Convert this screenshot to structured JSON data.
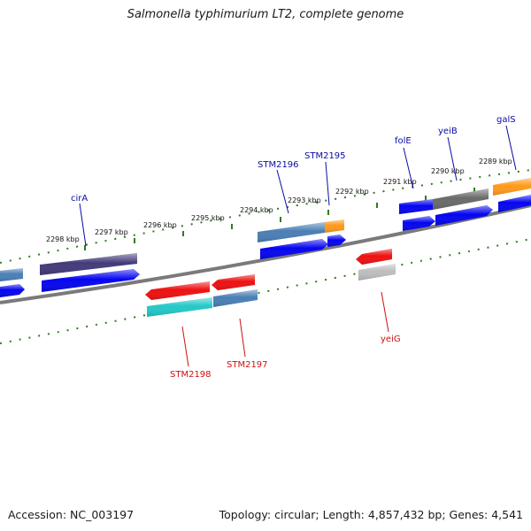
{
  "title": "Salmonella typhimurium LT2, complete genome",
  "accession_text": "Accession: NC_003197",
  "topology_text": "Topology: circular; Length: 4,857,432 bp; Genes: 4,541",
  "colors": {
    "backbone": "#7a7a7a",
    "tick": "#2e7d1e",
    "forward_label": "#0a0aa8",
    "reverse_label": "#cc1111",
    "cds_blue": "#0505f0",
    "cds_red": "#ee1111",
    "dark_purple": "#433a7a",
    "steel_blue": "#4a7fb5",
    "orange": "#ff9a1a",
    "gray": "#6a6a6a",
    "light_gray": "#bdbdbd",
    "cyan": "#25c8c8"
  },
  "kbp_labels": [
    "2298 kbp",
    "2297 kbp",
    "2296 kbp",
    "2295 kbp",
    "2294 kbp",
    "2293 kbp",
    "2292 kbp",
    "2291 kbp",
    "2290 kbp",
    "2289 kbp"
  ],
  "forward_genes": [
    "cirA",
    "STM2196",
    "STM2195",
    "folE",
    "yeiB",
    "galS"
  ],
  "reverse_genes": [
    "STM2198",
    "STM2197",
    "yeiG"
  ]
}
